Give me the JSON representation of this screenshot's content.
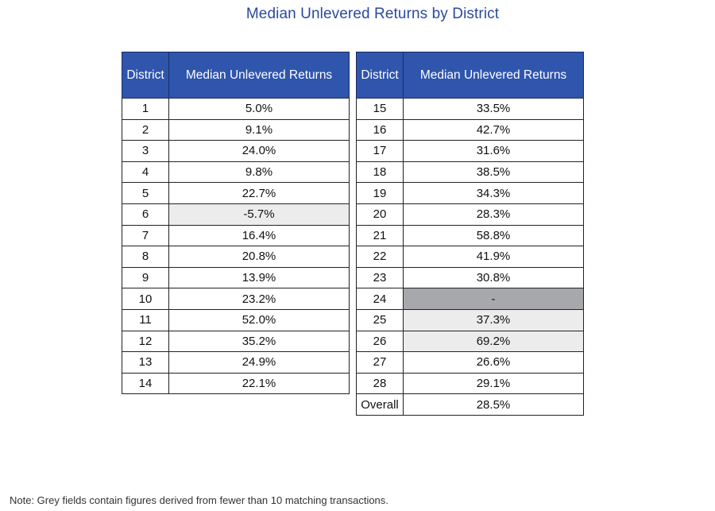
{
  "title": "Median Unlevered Returns by District",
  "headers": {
    "district": "District",
    "value": "Median Unlevered Returns"
  },
  "left_rows": [
    {
      "district": "1",
      "value": "5.0%",
      "shade": ""
    },
    {
      "district": "2",
      "value": "9.1%",
      "shade": ""
    },
    {
      "district": "3",
      "value": "24.0%",
      "shade": ""
    },
    {
      "district": "4",
      "value": "9.8%",
      "shade": ""
    },
    {
      "district": "5",
      "value": "22.7%",
      "shade": ""
    },
    {
      "district": "6",
      "value": "-5.7%",
      "shade": "grey-light"
    },
    {
      "district": "7",
      "value": "16.4%",
      "shade": ""
    },
    {
      "district": "8",
      "value": "20.8%",
      "shade": ""
    },
    {
      "district": "9",
      "value": "13.9%",
      "shade": ""
    },
    {
      "district": "10",
      "value": "23.2%",
      "shade": ""
    },
    {
      "district": "11",
      "value": "52.0%",
      "shade": ""
    },
    {
      "district": "12",
      "value": "35.2%",
      "shade": ""
    },
    {
      "district": "13",
      "value": "24.9%",
      "shade": ""
    },
    {
      "district": "14",
      "value": "22.1%",
      "shade": ""
    }
  ],
  "right_rows": [
    {
      "district": "15",
      "value": "33.5%",
      "shade": ""
    },
    {
      "district": "16",
      "value": "42.7%",
      "shade": ""
    },
    {
      "district": "17",
      "value": "31.6%",
      "shade": ""
    },
    {
      "district": "18",
      "value": "38.5%",
      "shade": ""
    },
    {
      "district": "19",
      "value": "34.3%",
      "shade": ""
    },
    {
      "district": "20",
      "value": "28.3%",
      "shade": ""
    },
    {
      "district": "21",
      "value": "58.8%",
      "shade": ""
    },
    {
      "district": "22",
      "value": "41.9%",
      "shade": ""
    },
    {
      "district": "23",
      "value": "30.8%",
      "shade": ""
    },
    {
      "district": "24",
      "value": "-",
      "shade": "grey-dark"
    },
    {
      "district": "25",
      "value": "37.3%",
      "shade": "grey-light"
    },
    {
      "district": "26",
      "value": "69.2%",
      "shade": "grey-light"
    },
    {
      "district": "27",
      "value": "26.6%",
      "shade": ""
    },
    {
      "district": "28",
      "value": "29.1%",
      "shade": ""
    },
    {
      "district": "Overall",
      "value": "28.5%",
      "shade": ""
    }
  ],
  "note": "Note: Grey fields contain figures derived from fewer than 10 matching transactions.",
  "chart_data": {
    "type": "table",
    "title": "Median Unlevered Returns by District",
    "columns": [
      "District",
      "Median Unlevered Returns"
    ],
    "unit": "%",
    "rows": [
      [
        "1",
        5.0
      ],
      [
        "2",
        9.1
      ],
      [
        "3",
        24.0
      ],
      [
        "4",
        9.8
      ],
      [
        "5",
        22.7
      ],
      [
        "6",
        -5.7
      ],
      [
        "7",
        16.4
      ],
      [
        "8",
        20.8
      ],
      [
        "9",
        13.9
      ],
      [
        "10",
        23.2
      ],
      [
        "11",
        52.0
      ],
      [
        "12",
        35.2
      ],
      [
        "13",
        24.9
      ],
      [
        "14",
        22.1
      ],
      [
        "15",
        33.5
      ],
      [
        "16",
        42.7
      ],
      [
        "17",
        31.6
      ],
      [
        "18",
        38.5
      ],
      [
        "19",
        34.3
      ],
      [
        "20",
        28.3
      ],
      [
        "21",
        58.8
      ],
      [
        "22",
        41.9
      ],
      [
        "23",
        30.8
      ],
      [
        "24",
        null
      ],
      [
        "25",
        37.3
      ],
      [
        "26",
        69.2
      ],
      [
        "27",
        26.6
      ],
      [
        "28",
        29.1
      ],
      [
        "Overall",
        28.5
      ]
    ],
    "grey_fields": [
      "6",
      "24",
      "25",
      "26"
    ]
  },
  "colors": {
    "title": "#2a4a9e",
    "header_bg": "#2f55ad",
    "grey_light": "#ececec",
    "grey_dark": "#a7a8ab"
  }
}
